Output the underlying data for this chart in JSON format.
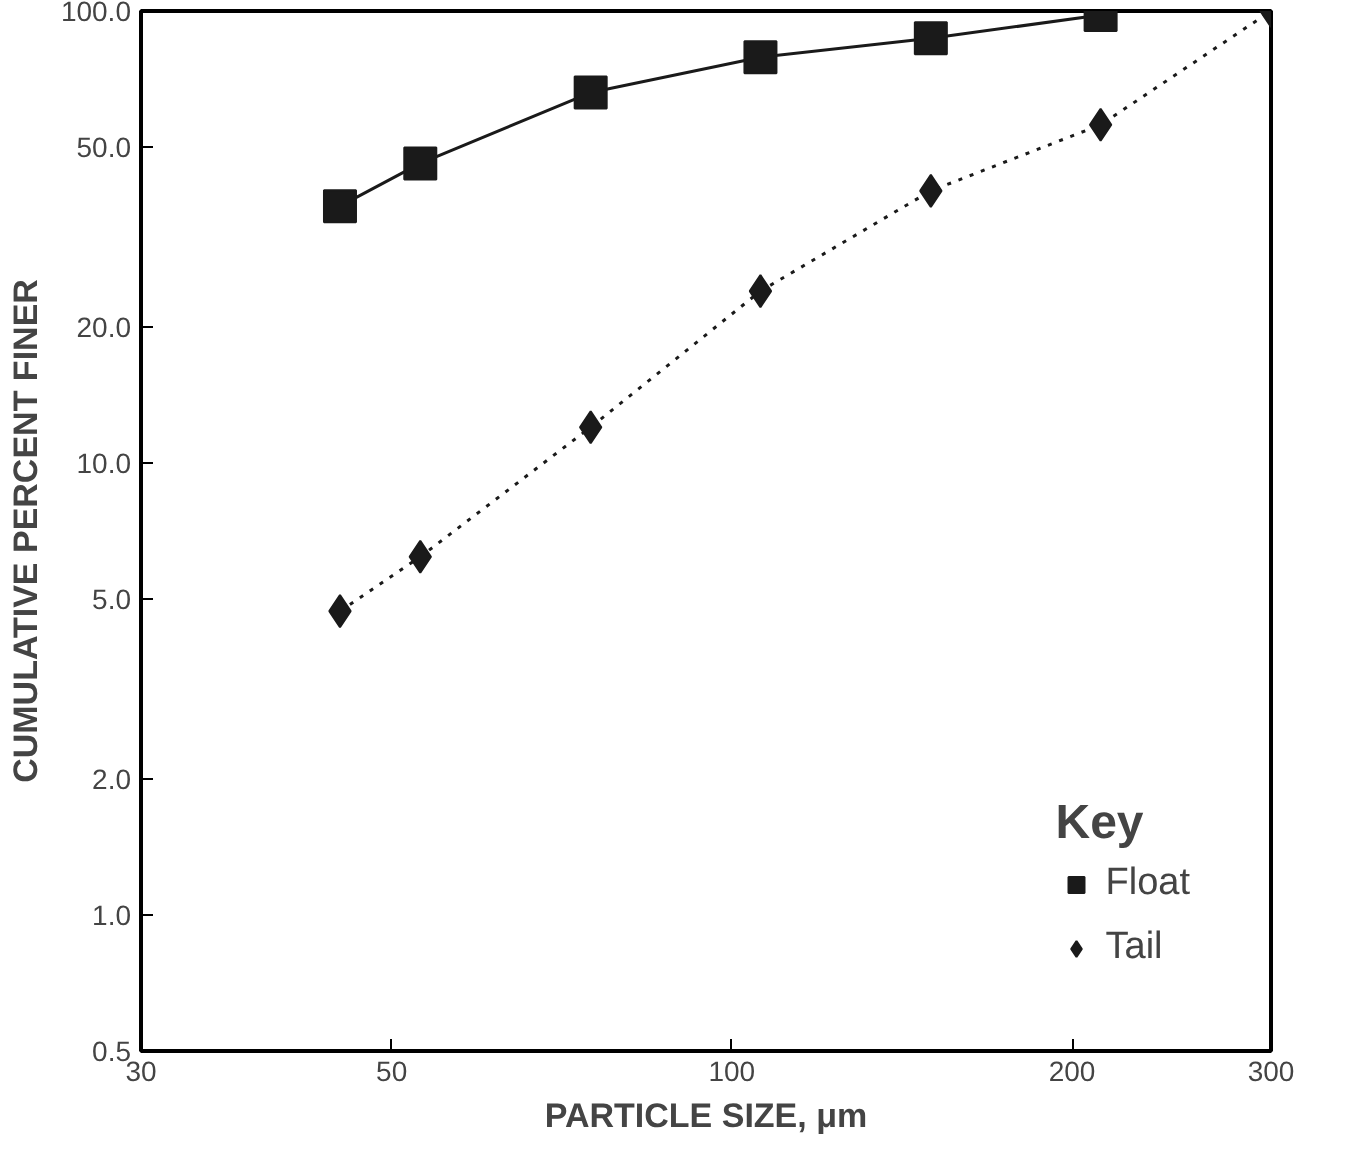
{
  "chart_data": {
    "type": "line",
    "xlabel": "PARTICLE SIZE, μm",
    "ylabel": "CUMULATIVE PERCENT FINER",
    "legend_title": "Key",
    "log": "xy",
    "xlim": [
      30,
      300
    ],
    "ylim": [
      0.5,
      100
    ],
    "xticks": [
      30,
      50,
      100,
      200,
      300
    ],
    "yticks": [
      {
        "value": 0.5,
        "label": "0.5"
      },
      {
        "value": 1,
        "label": "1.0"
      },
      {
        "value": 2,
        "label": "2.0"
      },
      {
        "value": 5,
        "label": "5.0"
      },
      {
        "value": 10,
        "label": "10.0"
      },
      {
        "value": 20,
        "label": "20.0"
      },
      {
        "value": 50,
        "label": "50.0"
      },
      {
        "value": 100,
        "label": "100.0"
      }
    ],
    "legend": "bottom right",
    "grid": false,
    "series": [
      {
        "name": "Float",
        "color": "#1a1a1a",
        "marker": "square",
        "line_style": "solid",
        "x": [
          45,
          53,
          75,
          106,
          150,
          212
        ],
        "values": [
          37,
          46,
          66,
          79,
          87,
          98
        ]
      },
      {
        "name": "Tail",
        "color": "#1a1a1a",
        "marker": "diamond",
        "line_style": "dotted",
        "x": [
          45,
          53,
          75,
          106,
          150,
          212,
          300
        ],
        "values": [
          4.7,
          6.2,
          12,
          24,
          40,
          56,
          100
        ]
      }
    ]
  }
}
